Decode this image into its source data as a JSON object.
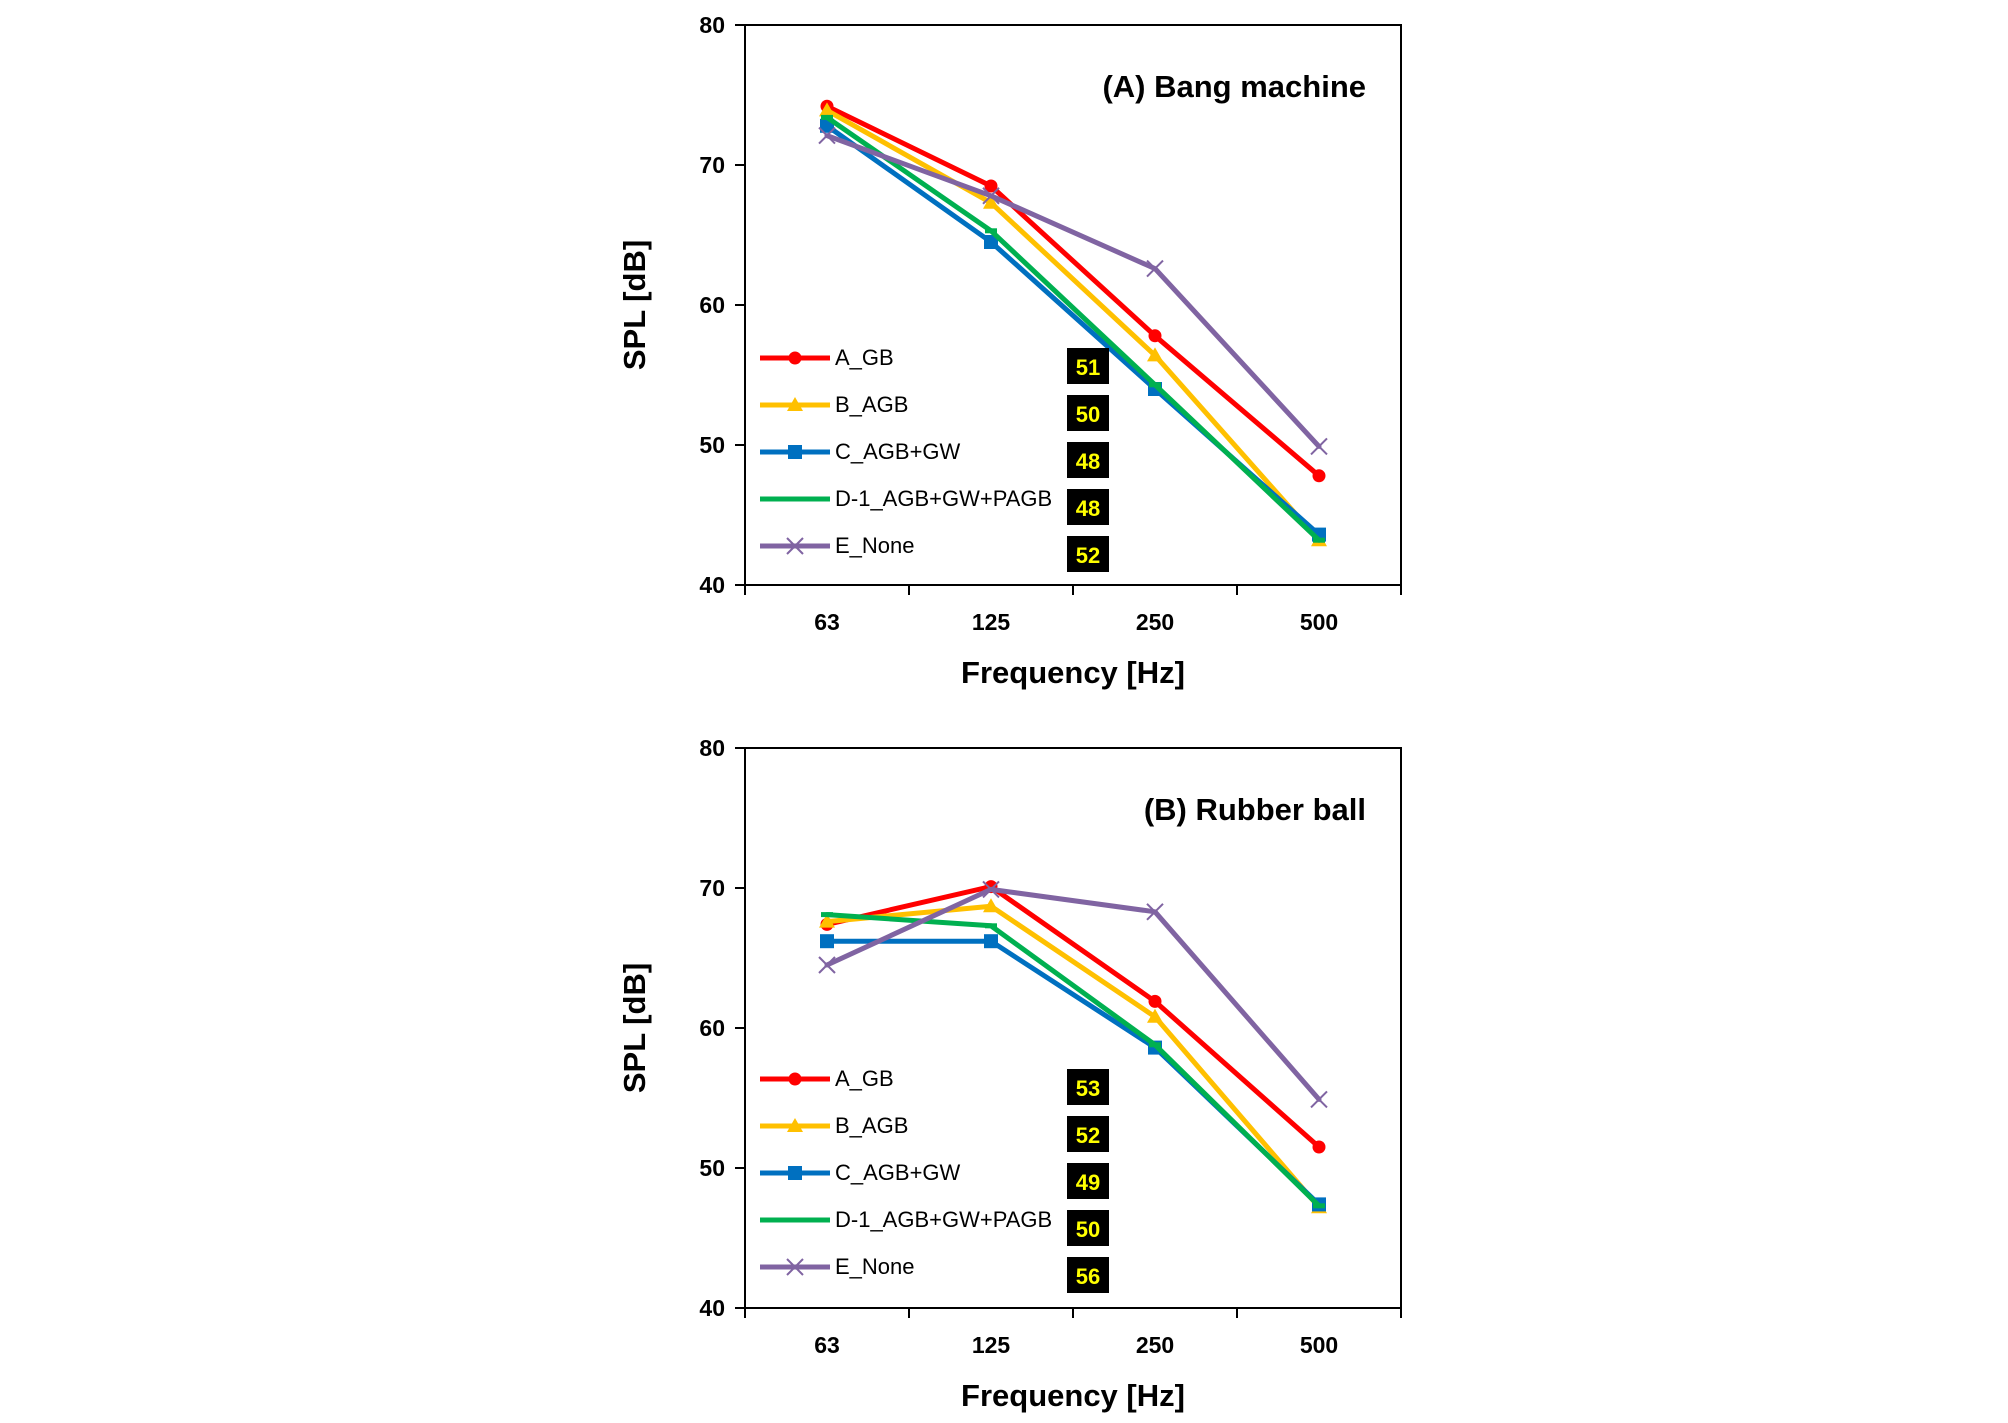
{
  "chart_data": [
    {
      "type": "line",
      "title": "(A) Bang machine",
      "xlabel": "Frequency [Hz]",
      "ylabel": "SPL [dB]",
      "categories": [
        "63",
        "125",
        "250",
        "500"
      ],
      "ylim": [
        40,
        80
      ],
      "yticks": [
        40,
        50,
        60,
        70,
        80
      ],
      "legend_position": "bottom-left",
      "series": [
        {
          "name": "A_GB",
          "color": "#ff0000",
          "marker": "circle",
          "values": [
            74.2,
            68.5,
            57.8,
            47.8
          ],
          "badge": "51"
        },
        {
          "name": "B_AGB",
          "color": "#ffc000",
          "marker": "triangle",
          "values": [
            73.9,
            67.3,
            56.4,
            43.2
          ],
          "badge": "50"
        },
        {
          "name": "C_AGB+GW",
          "color": "#0070c0",
          "marker": "square",
          "values": [
            72.8,
            64.5,
            54.0,
            43.6
          ],
          "badge": "48"
        },
        {
          "name": "D-1_AGB+GW+PAGB",
          "color": "#00b050",
          "marker": "dash",
          "values": [
            73.4,
            65.3,
            54.3,
            43.2
          ],
          "badge": "48"
        },
        {
          "name": "E_None",
          "color": "#8064a2",
          "marker": "x",
          "values": [
            72.1,
            67.8,
            62.6,
            49.9
          ],
          "badge": "52"
        }
      ]
    },
    {
      "type": "line",
      "title": "(B) Rubber ball",
      "xlabel": "Frequency [Hz]",
      "ylabel": "SPL [dB]",
      "categories": [
        "63",
        "125",
        "250",
        "500"
      ],
      "ylim": [
        40,
        80
      ],
      "yticks": [
        40,
        50,
        60,
        70,
        80
      ],
      "legend_position": "bottom-left",
      "series": [
        {
          "name": "A_GB",
          "color": "#ff0000",
          "marker": "circle",
          "values": [
            67.4,
            70.1,
            61.9,
            51.5
          ],
          "badge": "53"
        },
        {
          "name": "B_AGB",
          "color": "#ffc000",
          "marker": "triangle",
          "values": [
            67.6,
            68.7,
            60.8,
            47.2
          ],
          "badge": "52"
        },
        {
          "name": "C_AGB+GW",
          "color": "#0070c0",
          "marker": "square",
          "values": [
            66.2,
            66.2,
            58.6,
            47.4
          ],
          "badge": "49"
        },
        {
          "name": "D-1_AGB+GW+PAGB",
          "color": "#00b050",
          "marker": "dash",
          "values": [
            68.1,
            67.3,
            58.8,
            47.3
          ],
          "badge": "50"
        },
        {
          "name": "E_None",
          "color": "#8064a2",
          "marker": "x",
          "values": [
            64.5,
            69.9,
            68.3,
            54.9
          ],
          "badge": "56"
        }
      ]
    }
  ],
  "style": {
    "badge_background": "#000000",
    "badge_text_color": "#ffff00",
    "axis_color": "#000000"
  }
}
